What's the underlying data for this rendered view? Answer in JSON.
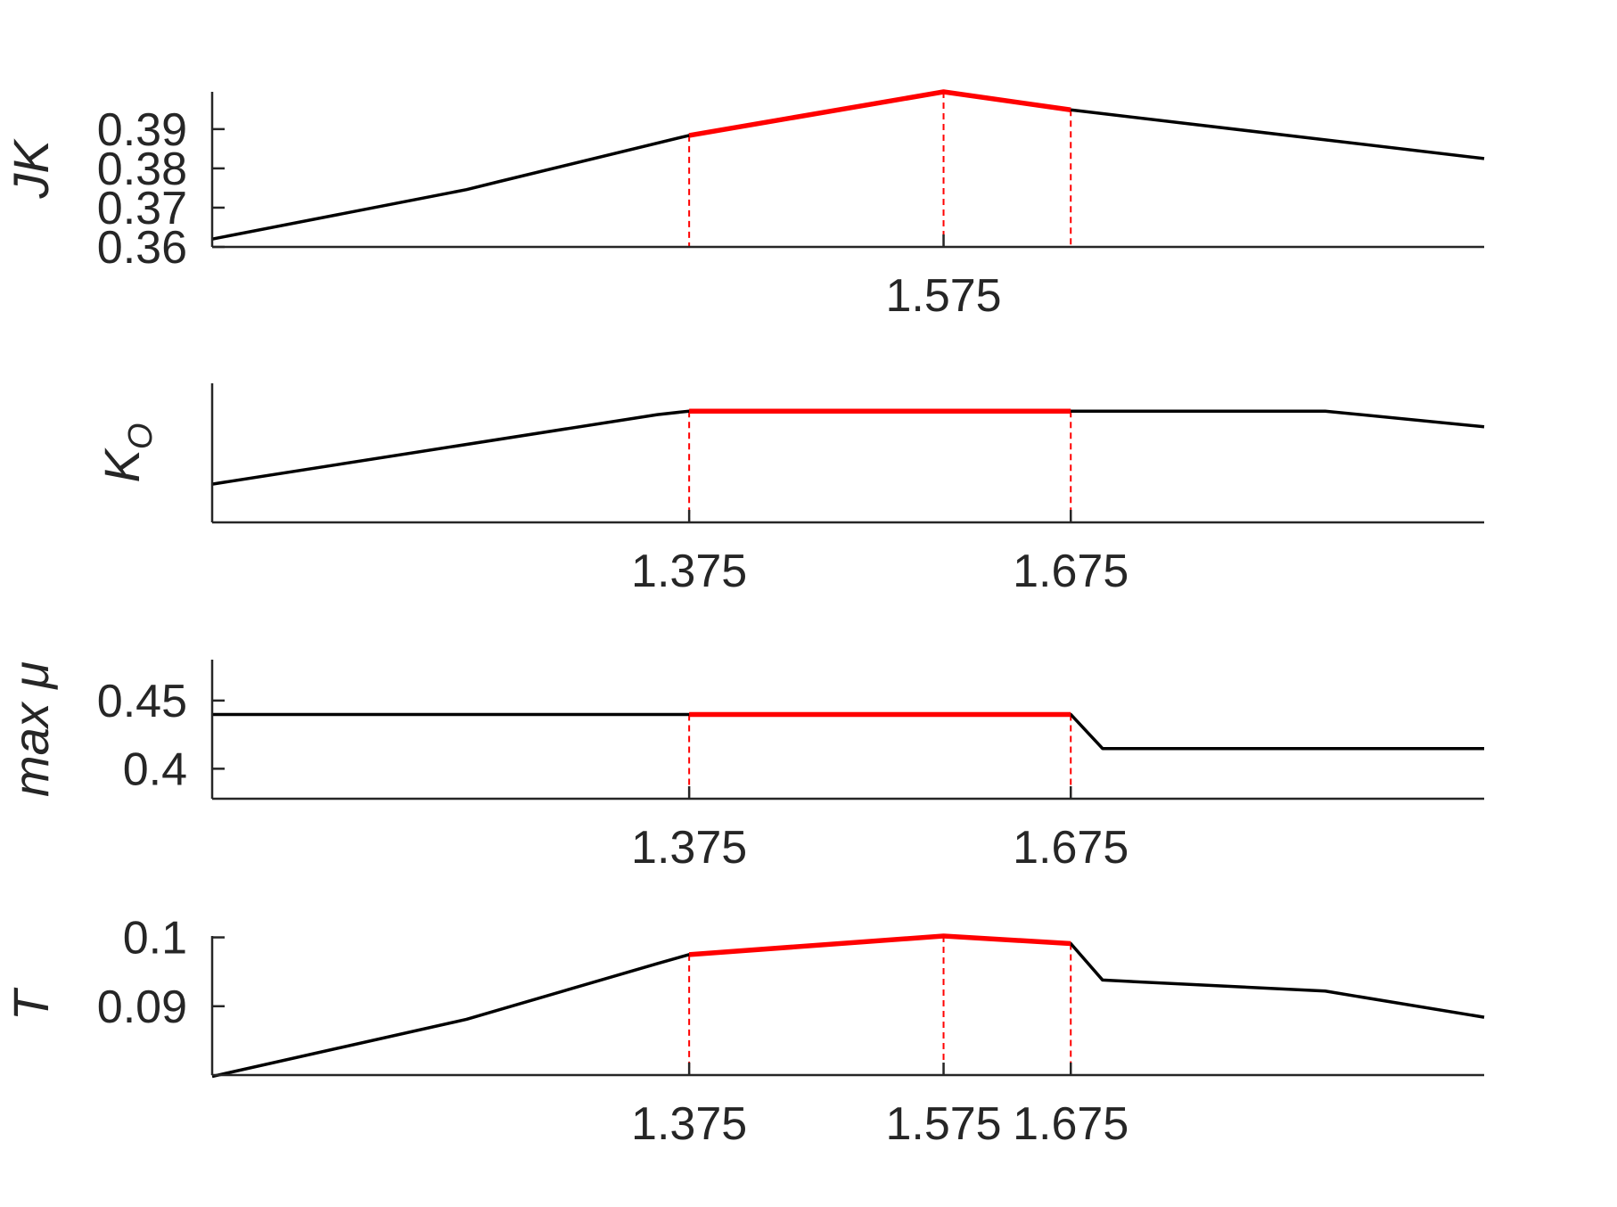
{
  "chart_data": [
    {
      "type": "line",
      "ylabel": "JK",
      "ylim": [
        0.36,
        0.3995
      ],
      "yticks": [
        0.36,
        0.37,
        0.38,
        0.39
      ],
      "ytick_labels": [
        "0.36",
        "0.37",
        "0.38",
        "0.39"
      ],
      "xticks": [
        1.575
      ],
      "xtick_labels": [
        "1.575"
      ],
      "series": [
        {
          "x": [
            1.0,
            1.2,
            1.225,
            1.375,
            1.575,
            1.675,
            2.0
          ],
          "y": [
            0.362,
            0.3746,
            0.3766,
            0.3884,
            0.3995,
            0.3949,
            0.3825
          ]
        }
      ],
      "highlight": {
        "x": [
          1.375,
          1.575,
          1.675
        ],
        "y": [
          0.3884,
          0.3995,
          0.3949
        ]
      },
      "markers": [
        1.375,
        1.575,
        1.675
      ]
    },
    {
      "type": "line",
      "ylabel": "K_O",
      "ylabel_main": "K",
      "ylabel_sub": "O",
      "ylim": [
        0.2,
        1.0
      ],
      "yticks": [],
      "ytick_labels": [],
      "xticks": [
        1.375,
        1.675
      ],
      "xtick_labels": [
        "1.375",
        "1.675"
      ],
      "series": [
        {
          "x": [
            1.0,
            1.35,
            1.375,
            1.875,
            2.0
          ],
          "y": [
            0.42,
            0.82,
            0.84,
            0.84,
            0.75
          ]
        }
      ],
      "highlight": {
        "x": [
          1.375,
          1.675
        ],
        "y": [
          0.84,
          0.84
        ]
      },
      "markers": [
        1.375,
        1.675
      ]
    },
    {
      "type": "line",
      "ylabel": "max μ",
      "ylim": [
        0.378,
        0.48
      ],
      "yticks": [
        0.4,
        0.45
      ],
      "ytick_labels": [
        "0.4",
        "0.45"
      ],
      "xticks": [
        1.375,
        1.675
      ],
      "xtick_labels": [
        "1.375",
        "1.675"
      ],
      "series": [
        {
          "x": [
            1.0,
            1.375,
            1.675,
            1.7,
            2.0
          ],
          "y": [
            0.4398,
            0.4398,
            0.4398,
            0.4148,
            0.4148
          ]
        }
      ],
      "highlight": {
        "x": [
          1.375,
          1.675
        ],
        "y": [
          0.4398,
          0.4398
        ]
      },
      "markers": [
        1.375,
        1.675
      ]
    },
    {
      "type": "line",
      "ylabel": "T",
      "ylim": [
        0.08,
        0.1002
      ],
      "yticks": [
        0.09,
        0.1
      ],
      "ytick_labels": [
        "0.09",
        "0.1"
      ],
      "xticks": [
        1.375,
        1.575,
        1.675
      ],
      "xtick_labels": [
        "1.375",
        "1.575",
        "1.675"
      ],
      "series": [
        {
          "x": [
            1.0,
            1.2,
            1.35,
            1.375,
            1.575,
            1.675,
            1.7,
            1.875,
            2.0
          ],
          "y": [
            0.0798,
            0.0881,
            0.0962,
            0.0975,
            0.1002,
            0.0991,
            0.0938,
            0.0922,
            0.0884
          ]
        }
      ],
      "highlight": {
        "x": [
          1.375,
          1.575,
          1.675
        ],
        "y": [
          0.0975,
          0.1002,
          0.0991
        ]
      },
      "markers": [
        1.375,
        1.575,
        1.675
      ]
    }
  ],
  "shared": {
    "xlim": [
      1.0,
      2.0
    ],
    "series_color": "#000000",
    "highlight_color": "#ff0000",
    "marker_color": "#ff0000",
    "axis_color": "#262626"
  }
}
